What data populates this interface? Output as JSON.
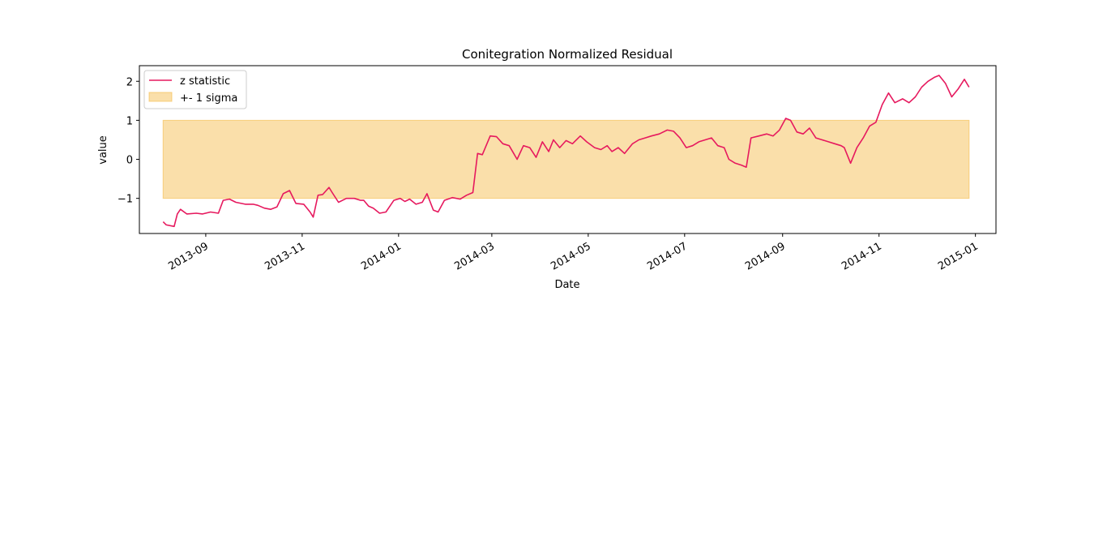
{
  "chart_data": {
    "type": "line",
    "title": "Conitegration Normalized Residual",
    "xlabel": "Date",
    "ylabel": "value",
    "xlim": [
      "2013-07-21",
      "2015-01-14"
    ],
    "ylim": [
      -1.9,
      2.4
    ],
    "yticks": [
      -1,
      0,
      1,
      2
    ],
    "ytick_labels": [
      "−1",
      "0",
      "1",
      "2"
    ],
    "xticks": [
      "2013-09-01",
      "2013-11-01",
      "2014-01-01",
      "2014-03-01",
      "2014-05-01",
      "2014-07-01",
      "2014-09-01",
      "2014-11-01",
      "2015-01-01"
    ],
    "xtick_labels": [
      "2013-09",
      "2013-11",
      "2014-01",
      "2014-03",
      "2014-05",
      "2014-07",
      "2014-09",
      "2014-11",
      "2015-01"
    ],
    "grid": false,
    "legend_position": "top-left",
    "series": [
      {
        "name": "z statistic",
        "color": "#e6195e",
        "x": [
          "2013-08-05",
          "2013-08-07",
          "2013-08-12",
          "2013-08-14",
          "2013-08-16",
          "2013-08-20",
          "2013-08-26",
          "2013-08-30",
          "2013-09-04",
          "2013-09-09",
          "2013-09-12",
          "2013-09-16",
          "2013-09-20",
          "2013-09-26",
          "2013-10-01",
          "2013-10-04",
          "2013-10-08",
          "2013-10-12",
          "2013-10-16",
          "2013-10-20",
          "2013-10-24",
          "2013-10-28",
          "2013-11-02",
          "2013-11-06",
          "2013-11-08",
          "2013-11-11",
          "2013-11-14",
          "2013-11-18",
          "2013-11-20",
          "2013-11-24",
          "2013-11-29",
          "2013-12-04",
          "2013-12-08",
          "2013-12-10",
          "2013-12-13",
          "2013-12-16",
          "2013-12-20",
          "2013-12-24",
          "2013-12-29",
          "2014-01-02",
          "2014-01-05",
          "2014-01-08",
          "2014-01-12",
          "2014-01-16",
          "2014-01-19",
          "2014-01-23",
          "2014-01-26",
          "2014-01-30",
          "2014-02-04",
          "2014-02-09",
          "2014-02-13",
          "2014-02-17",
          "2014-02-20",
          "2014-02-23",
          "2014-02-28",
          "2014-03-04",
          "2014-03-08",
          "2014-03-12",
          "2014-03-17",
          "2014-03-21",
          "2014-03-25",
          "2014-03-29",
          "2014-04-02",
          "2014-04-06",
          "2014-04-09",
          "2014-04-13",
          "2014-04-17",
          "2014-04-21",
          "2014-04-26",
          "2014-04-30",
          "2014-05-05",
          "2014-05-09",
          "2014-05-13",
          "2014-05-16",
          "2014-05-20",
          "2014-05-24",
          "2014-05-29",
          "2014-06-02",
          "2014-06-06",
          "2014-06-10",
          "2014-06-15",
          "2014-06-20",
          "2014-06-24",
          "2014-06-28",
          "2014-07-02",
          "2014-07-06",
          "2014-07-10",
          "2014-07-14",
          "2014-07-18",
          "2014-07-22",
          "2014-07-26",
          "2014-07-29",
          "2014-08-02",
          "2014-08-06",
          "2014-08-09",
          "2014-08-12",
          "2014-08-17",
          "2014-08-22",
          "2014-08-26",
          "2014-08-30",
          "2014-09-03",
          "2014-09-06",
          "2014-09-10",
          "2014-09-14",
          "2014-09-18",
          "2014-09-22",
          "2014-09-26",
          "2014-09-30",
          "2014-10-04",
          "2014-10-08",
          "2014-10-10",
          "2014-10-14",
          "2014-10-18",
          "2014-10-22",
          "2014-10-26",
          "2014-10-30",
          "2014-11-03",
          "2014-11-07",
          "2014-11-11",
          "2014-11-16",
          "2014-11-20",
          "2014-11-24",
          "2014-11-28",
          "2014-12-02",
          "2014-12-06",
          "2014-12-09",
          "2014-12-13",
          "2014-12-17",
          "2014-12-21",
          "2014-12-25",
          "2014-12-28"
        ],
        "values": [
          -1.6,
          -1.68,
          -1.72,
          -1.4,
          -1.28,
          -1.4,
          -1.38,
          -1.4,
          -1.35,
          -1.38,
          -1.05,
          -1.02,
          -1.1,
          -1.15,
          -1.15,
          -1.18,
          -1.25,
          -1.28,
          -1.22,
          -0.88,
          -0.8,
          -1.13,
          -1.15,
          -1.35,
          -1.48,
          -0.92,
          -0.9,
          -0.72,
          -0.85,
          -1.1,
          -1.0,
          -1.0,
          -1.05,
          -1.05,
          -1.2,
          -1.25,
          -1.38,
          -1.35,
          -1.05,
          -1.0,
          -1.08,
          -1.02,
          -1.15,
          -1.1,
          -0.88,
          -1.3,
          -1.35,
          -1.05,
          -0.98,
          -1.02,
          -0.92,
          -0.85,
          0.15,
          0.12,
          0.6,
          0.58,
          0.4,
          0.35,
          0.0,
          0.35,
          0.3,
          0.05,
          0.45,
          0.2,
          0.5,
          0.3,
          0.48,
          0.4,
          0.6,
          0.45,
          0.3,
          0.25,
          0.35,
          0.2,
          0.3,
          0.15,
          0.4,
          0.5,
          0.55,
          0.6,
          0.65,
          0.75,
          0.72,
          0.55,
          0.3,
          0.35,
          0.45,
          0.5,
          0.55,
          0.35,
          0.3,
          0.0,
          -0.1,
          -0.15,
          -0.2,
          0.55,
          0.6,
          0.65,
          0.6,
          0.75,
          1.05,
          1.0,
          0.7,
          0.65,
          0.8,
          0.55,
          0.5,
          0.45,
          0.4,
          0.35,
          0.3,
          -0.1,
          0.3,
          0.55,
          0.85,
          0.95,
          1.4,
          1.7,
          1.45,
          1.55,
          1.45,
          1.6,
          1.85,
          2.0,
          2.1,
          2.15,
          1.95,
          1.6,
          1.8,
          2.05,
          1.85
        ]
      }
    ],
    "band": {
      "name": "+- 1 sigma",
      "color": "#f5b942",
      "x_start": "2013-08-05",
      "x_end": "2014-12-28",
      "lower": -1,
      "upper": 1
    }
  }
}
